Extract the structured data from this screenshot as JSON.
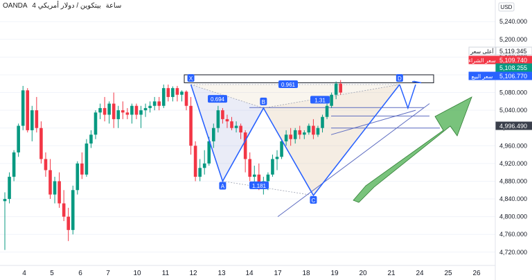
{
  "header": {
    "broker": "OANDA",
    "timeframe": "4 ساعة",
    "instrument": "بيتكوين / دولار أمريكي"
  },
  "currency": "USD",
  "chart_data": {
    "type": "candlestick",
    "title": "",
    "ylim": [
      4690,
      5270
    ],
    "x_ticks": [
      "4",
      "5",
      "6",
      "7",
      "10",
      "11",
      "12",
      "13",
      "14",
      "17",
      "18",
      "19",
      "20",
      "21",
      "24",
      "25",
      "26"
    ],
    "y_ticks": [
      "5,240.000",
      "5,200.000",
      "5,160.000",
      "5,120.000",
      "5,080.000",
      "5,040.000",
      "5,000.000",
      "4,960.000",
      "4,920.000",
      "4,880.000",
      "4,840.000",
      "4,800.000",
      "4,760.000",
      "4,720.000"
    ],
    "candles": [
      [
        4835,
        4855,
        4725,
        4840
      ],
      [
        4840,
        4900,
        4830,
        4890
      ],
      [
        4890,
        4950,
        4880,
        4945
      ],
      [
        4945,
        5010,
        4935,
        5005
      ],
      [
        5005,
        5095,
        4995,
        5085
      ],
      [
        5085,
        5090,
        4990,
        4995
      ],
      [
        4995,
        5050,
        4970,
        5040
      ],
      [
        5040,
        5070,
        4990,
        5000
      ],
      [
        5000,
        5015,
        4920,
        4930
      ],
      [
        4930,
        4945,
        4890,
        4905
      ],
      [
        4905,
        4930,
        4840,
        4850
      ],
      [
        4850,
        4890,
        4830,
        4880
      ],
      [
        4880,
        4900,
        4820,
        4830
      ],
      [
        4830,
        4860,
        4790,
        4800
      ],
      [
        4800,
        4820,
        4745,
        4770
      ],
      [
        4770,
        4870,
        4760,
        4860
      ],
      [
        4860,
        4925,
        4850,
        4920
      ],
      [
        4920,
        4945,
        4885,
        4895
      ],
      [
        4895,
        4975,
        4890,
        4965
      ],
      [
        4965,
        4995,
        4955,
        4985
      ],
      [
        4985,
        5040,
        4975,
        5035
      ],
      [
        5035,
        5055,
        5020,
        5045
      ],
      [
        5045,
        5070,
        5015,
        5030
      ],
      [
        5030,
        5060,
        5010,
        5055
      ],
      [
        5055,
        5080,
        5000,
        5020
      ],
      [
        5020,
        5050,
        5000,
        5040
      ],
      [
        5040,
        5060,
        5020,
        5035
      ],
      [
        5035,
        5045,
        5020,
        5030
      ],
      [
        5030,
        5055,
        5010,
        5050
      ],
      [
        5050,
        5055,
        5020,
        5030
      ],
      [
        5030,
        5050,
        5000,
        5040
      ],
      [
        5040,
        5055,
        5025,
        5045
      ],
      [
        5045,
        5060,
        5035,
        5050
      ],
      [
        5050,
        5070,
        5040,
        5060
      ],
      [
        5060,
        5070,
        5040,
        5050
      ],
      [
        5050,
        5098,
        5045,
        5090
      ],
      [
        5090,
        5098,
        5060,
        5070
      ],
      [
        5070,
        5094,
        5060,
        5090
      ],
      [
        5090,
        5095,
        5060,
        5075
      ],
      [
        5075,
        5085,
        5060,
        5082
      ],
      [
        5082,
        5085,
        5040,
        5050
      ],
      [
        5050,
        5070,
        4940,
        4960
      ],
      [
        4960,
        4970,
        4880,
        4890
      ],
      [
        4890,
        4930,
        4880,
        4910
      ],
      [
        4910,
        4950,
        4895,
        4920
      ],
      [
        4920,
        4980,
        4915,
        4970
      ],
      [
        4970,
        5010,
        4955,
        5000
      ],
      [
        5000,
        5050,
        4990,
        5040
      ],
      [
        5040,
        5045,
        5010,
        5020
      ],
      [
        5020,
        5030,
        5000,
        5015
      ],
      [
        5015,
        5025,
        4995,
        5000
      ],
      [
        5000,
        5015,
        4990,
        5005
      ],
      [
        5005,
        5010,
        4975,
        4990
      ],
      [
        4990,
        4995,
        4900,
        4930
      ],
      [
        4930,
        4945,
        4880,
        4890
      ],
      [
        4890,
        4915,
        4865,
        4895
      ],
      [
        4895,
        4920,
        4860,
        4870
      ],
      [
        4870,
        4890,
        4850,
        4880
      ],
      [
        4880,
        4900,
        4860,
        4895
      ],
      [
        4895,
        4940,
        4890,
        4930
      ],
      [
        4930,
        4950,
        4905,
        4935
      ],
      [
        4935,
        4975,
        4930,
        4970
      ],
      [
        4970,
        4995,
        4960,
        4985
      ],
      [
        4985,
        5000,
        4960,
        4975
      ],
      [
        4975,
        5000,
        4965,
        4995
      ],
      [
        4995,
        5005,
        4975,
        4985
      ],
      [
        4985,
        4995,
        4975,
        4990
      ],
      [
        4990,
        5010,
        4985,
        5005
      ],
      [
        5005,
        5020,
        4975,
        4985
      ],
      [
        4985,
        5005,
        4980,
        5000
      ],
      [
        5000,
        5030,
        4990,
        5025
      ],
      [
        5025,
        5055,
        5020,
        5050
      ],
      [
        5050,
        5080,
        5045,
        5075
      ],
      [
        5075,
        5105,
        5065,
        5100
      ],
      [
        5100,
        5108,
        5075,
        5080
      ]
    ],
    "harmonic_pattern": {
      "points": [
        {
          "label": "X",
          "idx": 41,
          "price": 5098
        },
        {
          "label": "A",
          "idx": 48,
          "price": 4880
        },
        {
          "label": "B",
          "idx": 57,
          "price": 5045
        },
        {
          "label": "C",
          "idx": 68,
          "price": 4848
        },
        {
          "label": "D",
          "idx": 87,
          "price": 5098
        }
      ],
      "ratios": [
        "0.694",
        "0.961",
        "1.31",
        "1.181"
      ]
    },
    "price_labels": [
      {
        "label": "أعلى سعر",
        "value": "5,119.345",
        "color": "#131722",
        "bg": "#ffffff"
      },
      {
        "label": "سعر الشراء",
        "value": "5,109.740",
        "color": "#ffffff",
        "bg": "#f23645"
      },
      {
        "label": "",
        "value": "5,108.255",
        "color": "#ffffff",
        "bg": "#089981"
      },
      {
        "label": "سعر البيع",
        "value": "5,106.770",
        "color": "#ffffff",
        "bg": "#2962ff"
      },
      {
        "label": "",
        "value": "4,996.490",
        "color": "#ffffff",
        "bg": "#3a3f4b"
      }
    ],
    "colors": {
      "up": "#089981",
      "down": "#f23645",
      "pattern": "#2962ff",
      "arrow": "#4caf50"
    }
  }
}
